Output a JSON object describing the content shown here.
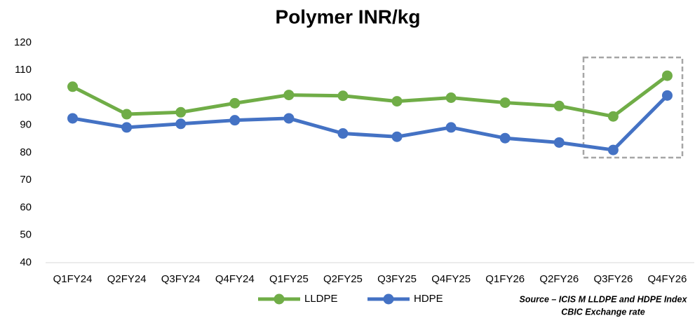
{
  "chart_data": {
    "type": "line",
    "title": "Polymer INR/kg",
    "categories": [
      "Q1FY24",
      "Q2FY24",
      "Q3FY24",
      "Q4FY24",
      "Q1FY25",
      "Q2FY25",
      "Q3FY25",
      "Q4FY25",
      "Q1FY26",
      "Q2FY26",
      "Q3FY26",
      "Q4FY26"
    ],
    "series": [
      {
        "name": "LLDPE",
        "color": "#70ad47",
        "values": [
          104,
          94,
          94.7,
          98,
          101,
          100.7,
          98.7,
          100,
          98.2,
          97,
          93.2,
          108
        ]
      },
      {
        "name": "HDPE",
        "color": "#4472c4",
        "values": [
          92.5,
          89.2,
          90.5,
          91.8,
          92.5,
          87,
          85.8,
          89.2,
          85.3,
          83.7,
          81,
          100.8
        ]
      }
    ],
    "ylim": [
      40,
      120
    ],
    "yticks": [
      40,
      50,
      60,
      70,
      80,
      90,
      100,
      110,
      120
    ],
    "grid": false,
    "legend": "bottom",
    "annotations": [
      "Source – ICIS M LLDPE and HDPE Index",
      "CBIC Exchange rate"
    ]
  }
}
